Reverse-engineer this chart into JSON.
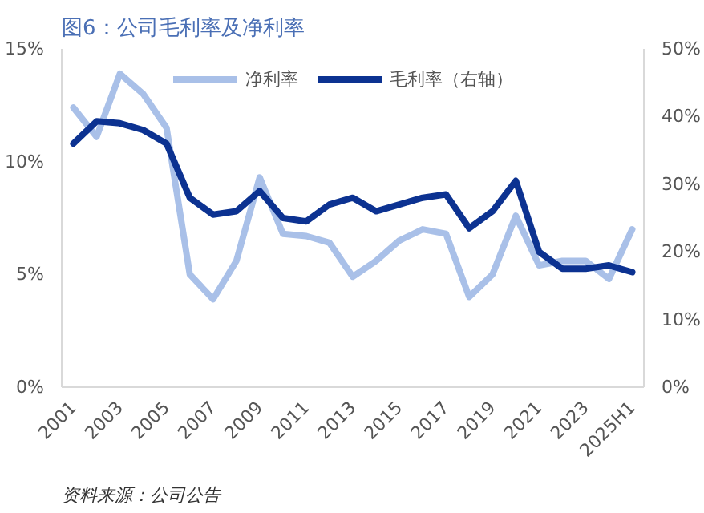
{
  "chart_data": {
    "type": "line",
    "title": "图6：公司毛利率及净利率",
    "categories": [
      "2001",
      null,
      "2003",
      null,
      "2005",
      null,
      "2007",
      null,
      "2009",
      null,
      "2011",
      null,
      "2013",
      null,
      "2015",
      null,
      "2017",
      null,
      "2019",
      null,
      "2021",
      null,
      "2023",
      null,
      "2025H1"
    ],
    "series": [
      {
        "name": "净利率",
        "color": "#a9c0e8",
        "values": [
          12.4,
          11.1,
          13.9,
          13.0,
          11.5,
          5.0,
          3.9,
          5.6,
          9.3,
          6.8,
          6.7,
          6.4,
          4.9,
          5.6,
          6.5,
          7.0,
          6.8,
          4.0,
          5.0,
          7.6,
          5.4,
          5.6,
          5.6,
          4.8,
          7.0
        ]
      },
      {
        "name": "毛利率（右轴）",
        "color": "#0c3291",
        "axis": "y2",
        "values": [
          36,
          39.3,
          39,
          38,
          36,
          28,
          25.5,
          26,
          29,
          25,
          24.5,
          27,
          28,
          26,
          27,
          28,
          28.5,
          23.5,
          26,
          30.5,
          20,
          17.5,
          17.5,
          18,
          17
        ]
      }
    ],
    "ylim": [
      0,
      15
    ],
    "yticks": [
      {
        "value": 0,
        "label": "0%"
      },
      {
        "value": 5,
        "label": "5%"
      },
      {
        "value": 10,
        "label": "10%"
      },
      {
        "value": 15,
        "label": "15%"
      }
    ],
    "y2lim": [
      0,
      50
    ],
    "y2ticks": [
      {
        "value": 0,
        "label": "0%"
      },
      {
        "value": 10,
        "label": "10%"
      },
      {
        "value": 20,
        "label": "20%"
      },
      {
        "value": 30,
        "label": "30%"
      },
      {
        "value": 40,
        "label": "40%"
      },
      {
        "value": 50,
        "label": "50%"
      }
    ],
    "legend": "top",
    "grid": false,
    "line_style": "solid",
    "marker": "none",
    "annotations": [
      "资料来源：公司公告"
    ]
  }
}
